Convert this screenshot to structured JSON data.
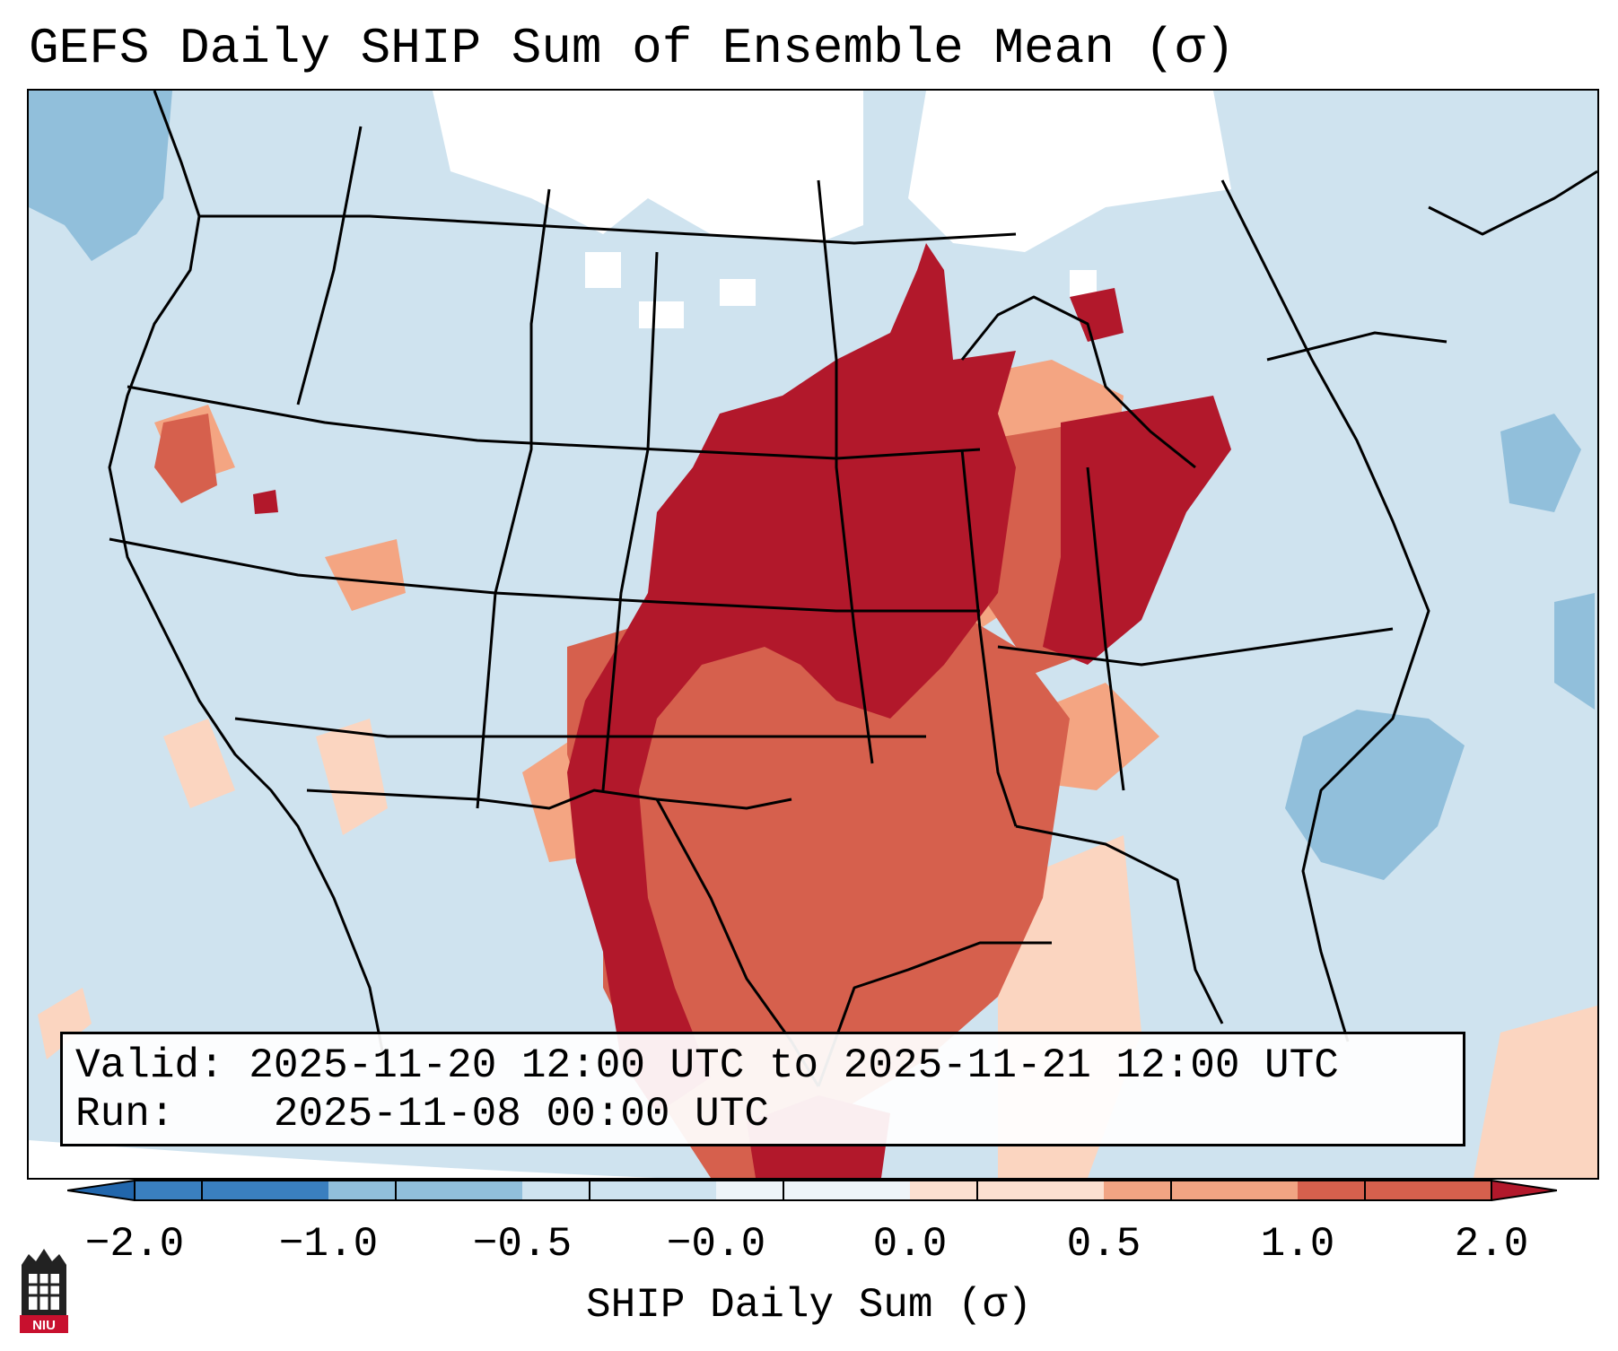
{
  "title": "GEFS Daily SHIP Sum of Ensemble Mean (σ)",
  "info": {
    "valid_label": "Valid:",
    "valid_value": "2025-11-20 12:00 UTC to 2025-11-21 12:00 UTC",
    "run_label": "Run:",
    "run_value": "2025-11-08 00:00 UTC"
  },
  "colorbar": {
    "label": "SHIP Daily Sum (σ)",
    "ticks": [
      "−2.0",
      "−1.0",
      "−0.5",
      "−0.0",
      "0.0",
      "0.5",
      "1.0",
      "2.0"
    ],
    "colors": [
      "#3a7fbf",
      "#91bfdb",
      "#cfe3ef",
      "#eef4f8",
      "#fbe0d0",
      "#f1a483",
      "#d6604d",
      "#b2182b"
    ]
  },
  "map": {
    "background_color": "#cfe3ef",
    "legend_colors": {
      "strong_negative": "#91bfdb",
      "near_zero": "#ffffff",
      "light_positive": "#fbd5c0",
      "moderate_positive": "#f4a582",
      "high_positive": "#d6604d",
      "extreme_positive": "#b2182b"
    }
  },
  "logo": {
    "text": "NIU"
  }
}
